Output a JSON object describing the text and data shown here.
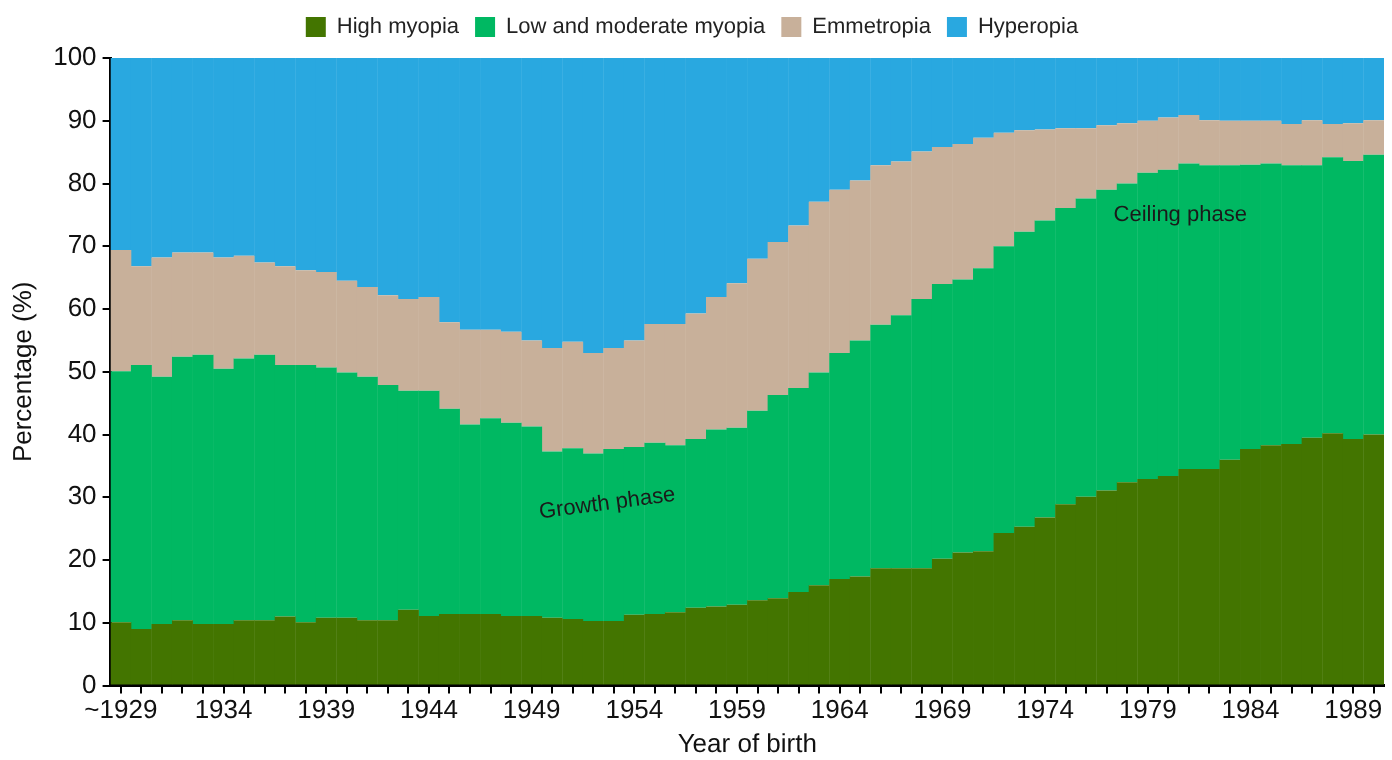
{
  "chart_data": {
    "type": "bar",
    "stacked": true,
    "xlabel": "Year of birth",
    "ylabel": "Percentage (%)",
    "categories": [
      "~1929",
      null,
      null,
      null,
      null,
      "1934",
      null,
      null,
      null,
      null,
      "1939",
      null,
      null,
      null,
      null,
      "1944",
      null,
      null,
      null,
      null,
      "1949",
      null,
      null,
      null,
      null,
      "1954",
      null,
      null,
      null,
      null,
      "1959",
      null,
      null,
      null,
      null,
      "1964",
      null,
      null,
      null,
      null,
      "1969",
      null,
      null,
      null,
      null,
      "1974",
      null,
      null,
      null,
      null,
      "1979",
      null,
      null,
      null,
      null,
      "1984",
      null,
      null,
      null,
      null,
      "1989",
      null
    ],
    "series": [
      {
        "name": "High myopia",
        "color": "#437500",
        "values": [
          10.1,
          9.0,
          9.8,
          10.4,
          9.8,
          9.8,
          10.4,
          10.4,
          11.0,
          10.1,
          10.8,
          10.8,
          10.4,
          10.4,
          12.1,
          11.1,
          11.4,
          11.4,
          11.4,
          11.1,
          11.1,
          10.8,
          10.6,
          10.3,
          10.3,
          11.3,
          11.4,
          11.7,
          12.4,
          12.6,
          12.9,
          13.6,
          13.9,
          14.9,
          16.0,
          17.0,
          17.4,
          18.7,
          18.7,
          18.7,
          20.2,
          21.2,
          21.4,
          24.3,
          25.3,
          26.8,
          28.9,
          30.1,
          31.1,
          32.4,
          32.9,
          33.4,
          34.5,
          34.5,
          36.0,
          37.7,
          38.3,
          38.5,
          39.5,
          40.2,
          39.3,
          40.0
        ]
      },
      {
        "name": "Low and moderate myopia",
        "color": "#00b862",
        "values": [
          40.0,
          42.1,
          39.4,
          42.0,
          42.9,
          40.7,
          41.7,
          42.3,
          40.1,
          41.0,
          39.9,
          39.1,
          38.8,
          37.5,
          34.9,
          35.9,
          32.7,
          30.2,
          31.2,
          30.8,
          30.2,
          26.5,
          27.2,
          26.7,
          27.4,
          26.7,
          27.3,
          26.6,
          26.9,
          28.2,
          28.2,
          30.2,
          32.4,
          32.5,
          33.9,
          36.0,
          37.6,
          38.8,
          40.3,
          42.9,
          43.8,
          43.5,
          45.1,
          45.7,
          47.0,
          47.3,
          47.2,
          47.5,
          47.9,
          47.6,
          48.8,
          48.8,
          48.7,
          48.4,
          46.9,
          45.3,
          44.9,
          44.4,
          43.4,
          44.0,
          44.3,
          44.6
        ]
      },
      {
        "name": "Emmetropia",
        "color": "#c8b09a",
        "values": [
          19.3,
          15.7,
          19.0,
          16.6,
          16.3,
          17.7,
          16.4,
          14.7,
          15.7,
          15.1,
          15.2,
          14.6,
          14.3,
          14.3,
          14.6,
          14.9,
          13.8,
          15.1,
          14.1,
          14.5,
          13.7,
          16.5,
          17.0,
          16.0,
          16.1,
          17.0,
          18.9,
          19.3,
          20.0,
          21.1,
          23.0,
          24.2,
          24.4,
          25.9,
          27.2,
          26.0,
          25.5,
          25.4,
          24.5,
          23.5,
          21.8,
          21.6,
          20.8,
          18.1,
          16.2,
          14.5,
          12.7,
          11.2,
          10.3,
          9.6,
          8.3,
          8.3,
          7.7,
          7.2,
          7.1,
          7.0,
          6.8,
          6.6,
          7.2,
          5.3,
          6.0,
          5.5
        ]
      },
      {
        "name": "Hyperopia",
        "color": "#29a8e0",
        "values": [
          30.6,
          33.2,
          31.8,
          31.0,
          31.0,
          31.8,
          31.5,
          32.6,
          33.2,
          33.8,
          34.1,
          35.5,
          36.5,
          37.8,
          38.4,
          38.1,
          42.1,
          43.3,
          43.3,
          43.6,
          45.0,
          46.2,
          45.2,
          47.0,
          46.2,
          45.0,
          42.4,
          42.4,
          40.7,
          38.1,
          35.9,
          32.0,
          29.3,
          26.7,
          22.9,
          21.0,
          19.5,
          17.1,
          16.5,
          14.9,
          14.2,
          13.7,
          12.7,
          11.9,
          11.5,
          11.4,
          11.2,
          11.2,
          10.7,
          10.4,
          10.0,
          9.5,
          9.1,
          9.9,
          10.0,
          10.0,
          10.0,
          10.5,
          9.9,
          10.5,
          10.4,
          9.9
        ]
      }
    ],
    "ylim": [
      0,
      100
    ],
    "yticks": [
      0,
      10,
      20,
      30,
      40,
      50,
      60,
      70,
      80,
      90,
      100
    ],
    "grid": false,
    "legend": "top",
    "annotations": [
      "Growth phase",
      "Ceiling phase"
    ]
  }
}
